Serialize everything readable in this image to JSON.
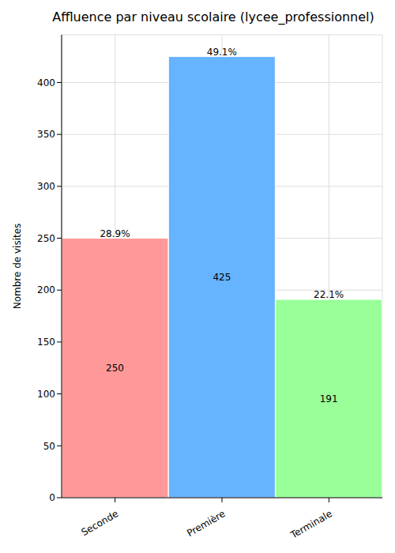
{
  "chart_data": {
    "type": "bar",
    "title": "Affluence par niveau scolaire (lycee_professionnel)",
    "y_label": "Nombre de visites",
    "categories": [
      "Seconde",
      "Première",
      "Terminale"
    ],
    "values": [
      250,
      425,
      191
    ],
    "percentage_labels": [
      "28.9%",
      "49.1%",
      "22.1%"
    ],
    "colors": [
      "#ff9999",
      "#66b3ff",
      "#99ff99"
    ],
    "ylim": [
      0,
      446
    ],
    "yticks": [
      0,
      50,
      100,
      150,
      200,
      250,
      300,
      350,
      400
    ],
    "grid": true,
    "data_labels": true
  }
}
